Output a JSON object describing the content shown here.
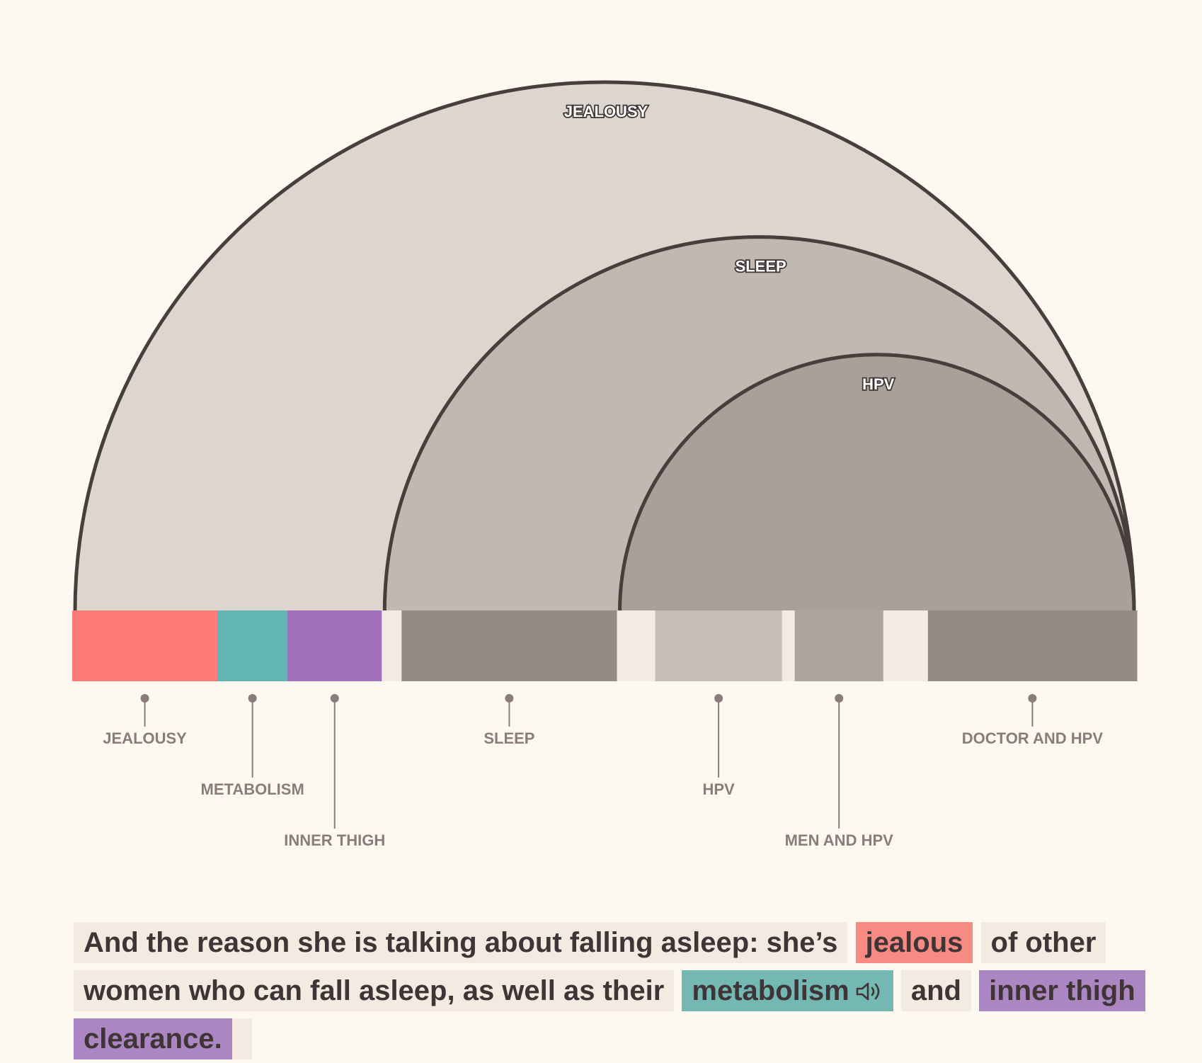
{
  "arcs": [
    {
      "id": "jealousy",
      "label": "JEALOUSY",
      "fill": "#ddd6cf",
      "start_segment": 0,
      "end_segment": 8
    },
    {
      "id": "sleep",
      "label": "SLEEP",
      "fill": "#c0b8b1",
      "start_segment": 3,
      "end_segment": 8
    },
    {
      "id": "hpv",
      "label": "HPV",
      "fill": "#a9a09a",
      "start_segment": 5,
      "end_segment": 8
    }
  ],
  "segments": [
    {
      "label": "JEALOUSY",
      "color": "#fd7b78",
      "weight": 205,
      "label_row": 0
    },
    {
      "label": "METABOLISM",
      "color": "#62b4b5",
      "weight": 99,
      "label_row": 1
    },
    {
      "label": "INNER THIGH",
      "color": "#a271bb",
      "weight": 133,
      "label_row": 2
    },
    {
      "label": "",
      "color": "#f3ebe2",
      "weight": 28,
      "label_row": null
    },
    {
      "label": "SLEEP",
      "color": "#958a86",
      "weight": 304,
      "label_row": 0
    },
    {
      "label": "",
      "color": "#f3ebe2",
      "weight": 54,
      "label_row": null
    },
    {
      "label": "HPV",
      "color": "#c7bdb7",
      "weight": 179,
      "label_row": 1
    },
    {
      "label": "",
      "color": "#f3ebe2",
      "weight": 18,
      "label_row": null
    },
    {
      "label": "MEN AND HPV",
      "color": "#ada39d",
      "weight": 125,
      "label_row": 2
    },
    {
      "label": "",
      "color": "#f3ebe2",
      "weight": 63,
      "label_row": null
    },
    {
      "label": "DOCTOR AND HPV",
      "color": "#958a86",
      "weight": 295,
      "label_row": 0
    }
  ],
  "sentence": {
    "part1": "And the reason she is talking about falling asleep: she’s",
    "jealous": "jealous",
    "part2": "of other women who can fall asleep, as well as their",
    "metabolism": "metabolism",
    "part3": "and",
    "inner_thigh": "inner thigh clearance.",
    "part4": ""
  },
  "colors": {
    "outline": "#483e3e",
    "label_text": "#8b7b7b",
    "text": "#3f3536",
    "background": "#fdf9f0"
  }
}
